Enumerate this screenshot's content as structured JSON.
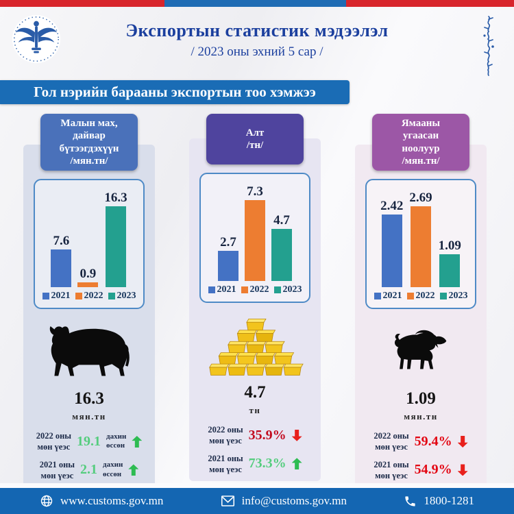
{
  "top_bar": {
    "segments": [
      {
        "color": "#d8252c"
      },
      {
        "color": "#1f6cb4"
      },
      {
        "color": "#d8252c"
      }
    ]
  },
  "header": {
    "title": "Экспортын статистик мэдээлэл",
    "subtitle": "/ 2023 оны эхний 5 сар /",
    "logo": "mongolian-customs-emblem",
    "title_color": "#1b3f9e"
  },
  "banner": {
    "text": "Гол нэрийн барааны экспортын тоо хэмжээ",
    "bg": "#1a6cb5"
  },
  "legend": [
    {
      "label": "2021",
      "color": "#4472c4"
    },
    {
      "label": "2022",
      "color": "#ed7d31"
    },
    {
      "label": "2023",
      "color": "#23a08f"
    }
  ],
  "chart_data": [
    {
      "type": "bar",
      "title": "Малын мах, дайвар бүтээгдэхүүн /мян.тн/",
      "categories": [
        "2021",
        "2022",
        "2023"
      ],
      "values": [
        7.6,
        0.9,
        16.3
      ],
      "series_colors": [
        "#4472c4",
        "#ed7d31",
        "#23a08f"
      ],
      "legend_position": "bottom",
      "ylim": [
        0,
        18
      ],
      "grid": false,
      "unit": "мян.тн"
    },
    {
      "type": "bar",
      "title": "Алт /тн/",
      "categories": [
        "2021",
        "2022",
        "2023"
      ],
      "values": [
        2.7,
        7.3,
        4.7
      ],
      "series_colors": [
        "#4472c4",
        "#ed7d31",
        "#23a08f"
      ],
      "legend_position": "bottom",
      "ylim": [
        0,
        8
      ],
      "grid": false,
      "unit": "тн"
    },
    {
      "type": "bar",
      "title": "Ямааны угаасан ноолуур /мян.тн/",
      "categories": [
        "2021",
        "2022",
        "2023"
      ],
      "values": [
        2.42,
        2.69,
        1.09
      ],
      "series_colors": [
        "#4472c4",
        "#ed7d31",
        "#23a08f"
      ],
      "legend_position": "bottom",
      "ylim": [
        0,
        3
      ],
      "grid": false,
      "unit": "мян.тн"
    }
  ],
  "columns": [
    {
      "title_lines": [
        "Малын мах,",
        "дайвар",
        "бүтээгдэхүүн",
        "/мян.тн/"
      ],
      "title_bg": "#4a71ba",
      "panel_bg": "#d9deeb",
      "icon": "cow-icon",
      "total_value": "16.3",
      "total_unit": "мян.тн",
      "stats": [
        {
          "period_line1": "2022 оны",
          "period_line2": "мөн үеэс",
          "value": "19.1",
          "value_color": "#55cd7e",
          "suffix_line1": "дахин",
          "suffix_line2": "өссөн",
          "arrow": "up",
          "arrow_color": "#2ebc52"
        },
        {
          "period_line1": "2021 оны",
          "period_line2": "мөн үеэс",
          "value": "2.1",
          "value_color": "#55cd7e",
          "suffix_line1": "дахин",
          "suffix_line2": "өссөн",
          "arrow": "up",
          "arrow_color": "#2ebc52"
        }
      ]
    },
    {
      "title_lines": [
        "Алт",
        "/тн/"
      ],
      "title_bg": "#4f449e",
      "panel_bg": "#e7e5f2",
      "icon": "gold-bars-icon",
      "total_value": "4.7",
      "total_unit": "тн",
      "stats": [
        {
          "period_line1": "2022 оны",
          "period_line2": "мөн үеэс",
          "value": "35.9%",
          "value_color": "#c20a1e",
          "arrow": "down",
          "arrow_color": "#e8201c"
        },
        {
          "period_line1": "2021 оны",
          "period_line2": "мөн үеэс",
          "value": "73.3%",
          "value_color": "#55cd7e",
          "arrow": "up",
          "arrow_color": "#2ebc52"
        }
      ]
    },
    {
      "title_lines": [
        "Ямааны",
        "угаасан",
        "ноолуур",
        "/мян.тн/"
      ],
      "title_bg": "#9c57a6",
      "panel_bg": "#f1e9f1",
      "icon": "goat-icon",
      "total_value": "1.09",
      "total_unit": "мян.тн",
      "stats": [
        {
          "period_line1": "2022 оны",
          "period_line2": "мөн үеэс",
          "value": "59.4%",
          "value_color": "#e30613",
          "arrow": "down",
          "arrow_color": "#e8201c"
        },
        {
          "period_line1": "2021 оны",
          "period_line2": "мөн үеэс",
          "value": "54.9%",
          "value_color": "#e30613",
          "arrow": "down",
          "arrow_color": "#e8201c"
        }
      ]
    }
  ],
  "footer": {
    "bg": "#1466b2",
    "items": [
      {
        "icon": "globe-icon",
        "text": "www.customs.gov.mn"
      },
      {
        "icon": "mail-icon",
        "text": "info@customs.gov.mn"
      },
      {
        "icon": "phone-icon",
        "text": "1800-1281"
      }
    ]
  }
}
